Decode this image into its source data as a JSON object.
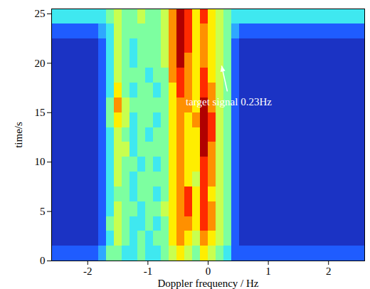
{
  "chart_data": {
    "type": "heatmap",
    "xlabel": "Doppler frequency / Hz",
    "ylabel": "time/s",
    "xlim": [
      -2.6,
      2.6
    ],
    "ylim": [
      0,
      25.5
    ],
    "xticks": [
      -2,
      -1,
      0,
      1,
      2
    ],
    "yticks": [
      0,
      5,
      10,
      15,
      20,
      25
    ],
    "xbins": [
      -2.6,
      -2.47,
      -2.34,
      -2.21,
      -2.08,
      -1.95,
      -1.82,
      -1.69,
      -1.56,
      -1.43,
      -1.3,
      -1.17,
      -1.04,
      -0.91,
      -0.78,
      -0.65,
      -0.52,
      -0.39,
      -0.26,
      -0.13,
      0,
      0.13,
      0.26,
      0.39,
      0.52,
      0.65,
      0.78,
      0.91,
      1.04,
      1.17,
      1.3,
      1.43,
      1.56,
      1.69,
      1.82,
      1.95,
      2.08,
      2.21,
      2.34,
      2.47,
      2.6
    ],
    "ybins": [
      0,
      1.5,
      3,
      4.5,
      6,
      7.5,
      9,
      10.5,
      12,
      13.5,
      15,
      16.5,
      18,
      19.5,
      21,
      22.5,
      24,
      25.5
    ],
    "values": [
      [
        1,
        1,
        1,
        1,
        1,
        1,
        2,
        4,
        4,
        3,
        3,
        4,
        3,
        3,
        4,
        5,
        6,
        5,
        4,
        6,
        5,
        4,
        3,
        1,
        1,
        1,
        1,
        1,
        1,
        1,
        1,
        1,
        1,
        1,
        1,
        1,
        1,
        1,
        1,
        1
      ],
      [
        0,
        0,
        0,
        0,
        0,
        0,
        1,
        3,
        5,
        4,
        3,
        4,
        3,
        4,
        4,
        6,
        7,
        6,
        5,
        7,
        6,
        5,
        4,
        1,
        0,
        0,
        0,
        0,
        0,
        0,
        0,
        0,
        0,
        0,
        0,
        0,
        0,
        0,
        0,
        0
      ],
      [
        0,
        0,
        0,
        0,
        0,
        0,
        1,
        4,
        5,
        4,
        3,
        3,
        4,
        3,
        4,
        6,
        7,
        7,
        6,
        8,
        7,
        5,
        4,
        1,
        0,
        0,
        0,
        0,
        0,
        0,
        0,
        0,
        0,
        0,
        0,
        0,
        0,
        0,
        0,
        0
      ],
      [
        0,
        0,
        0,
        0,
        0,
        0,
        1,
        3,
        5,
        4,
        4,
        3,
        4,
        4,
        5,
        6,
        7,
        8,
        6,
        8,
        7,
        5,
        4,
        1,
        0,
        0,
        0,
        0,
        0,
        0,
        0,
        0,
        0,
        0,
        0,
        0,
        0,
        0,
        0,
        0
      ],
      [
        0,
        0,
        0,
        0,
        0,
        0,
        1,
        3,
        4,
        4,
        3,
        4,
        4,
        3,
        4,
        6,
        7,
        8,
        6,
        8,
        6,
        5,
        4,
        1,
        0,
        0,
        0,
        0,
        0,
        0,
        0,
        0,
        0,
        0,
        0,
        0,
        0,
        0,
        0,
        0
      ],
      [
        0,
        0,
        0,
        0,
        0,
        0,
        1,
        3,
        5,
        4,
        3,
        4,
        4,
        4,
        4,
        6,
        7,
        6,
        5,
        8,
        7,
        5,
        4,
        1,
        0,
        0,
        0,
        0,
        0,
        0,
        0,
        0,
        0,
        0,
        0,
        0,
        0,
        0,
        0,
        0
      ],
      [
        0,
        0,
        0,
        0,
        0,
        0,
        1,
        3,
        5,
        4,
        4,
        3,
        4,
        3,
        4,
        6,
        7,
        6,
        6,
        8,
        7,
        5,
        4,
        1,
        0,
        0,
        0,
        0,
        0,
        0,
        0,
        0,
        0,
        0,
        0,
        0,
        0,
        0,
        0,
        0
      ],
      [
        0,
        0,
        0,
        0,
        0,
        0,
        1,
        3,
        5,
        5,
        3,
        4,
        4,
        4,
        4,
        6,
        7,
        6,
        6,
        9,
        7,
        5,
        4,
        1,
        0,
        0,
        0,
        0,
        0,
        0,
        0,
        0,
        0,
        0,
        0,
        0,
        0,
        0,
        0,
        0
      ],
      [
        0,
        0,
        0,
        0,
        0,
        0,
        1,
        3,
        5,
        4,
        3,
        4,
        3,
        4,
        4,
        6,
        7,
        6,
        6,
        9,
        8,
        5,
        4,
        1,
        0,
        0,
        0,
        0,
        0,
        0,
        0,
        0,
        0,
        0,
        0,
        0,
        0,
        0,
        0,
        0
      ],
      [
        0,
        0,
        0,
        0,
        0,
        0,
        1,
        4,
        6,
        5,
        3,
        4,
        4,
        3,
        4,
        6,
        7,
        6,
        7,
        9,
        8,
        5,
        4,
        1,
        0,
        0,
        0,
        0,
        0,
        0,
        0,
        0,
        0,
        0,
        0,
        0,
        0,
        0,
        0,
        0
      ],
      [
        0,
        0,
        0,
        0,
        0,
        0,
        1,
        4,
        7,
        5,
        4,
        4,
        4,
        4,
        4,
        6,
        7,
        7,
        6,
        9,
        7,
        5,
        4,
        1,
        0,
        0,
        0,
        0,
        0,
        0,
        0,
        0,
        0,
        0,
        0,
        0,
        0,
        0,
        0,
        0
      ],
      [
        0,
        0,
        0,
        0,
        0,
        0,
        1,
        3,
        6,
        4,
        3,
        4,
        4,
        3,
        4,
        6,
        8,
        7,
        6,
        8,
        7,
        5,
        4,
        1,
        0,
        0,
        0,
        0,
        0,
        0,
        0,
        0,
        0,
        0,
        0,
        0,
        0,
        0,
        0,
        0
      ],
      [
        0,
        0,
        0,
        0,
        0,
        0,
        1,
        3,
        5,
        4,
        4,
        4,
        3,
        4,
        4,
        7,
        8,
        7,
        6,
        8,
        6,
        5,
        4,
        1,
        0,
        0,
        0,
        0,
        0,
        0,
        0,
        0,
        0,
        0,
        0,
        0,
        0,
        0,
        0,
        0
      ],
      [
        0,
        0,
        0,
        0,
        0,
        0,
        1,
        3,
        5,
        4,
        3,
        4,
        4,
        4,
        5,
        7,
        9,
        7,
        6,
        7,
        6,
        5,
        4,
        1,
        0,
        0,
        0,
        0,
        0,
        0,
        0,
        0,
        0,
        0,
        0,
        0,
        0,
        0,
        0,
        0
      ],
      [
        0,
        0,
        0,
        0,
        0,
        0,
        1,
        3,
        5,
        4,
        3,
        4,
        4,
        4,
        5,
        7,
        9,
        8,
        6,
        7,
        6,
        5,
        4,
        1,
        0,
        0,
        0,
        0,
        0,
        0,
        0,
        0,
        0,
        0,
        0,
        0,
        0,
        0,
        0,
        0
      ],
      [
        1,
        1,
        1,
        1,
        1,
        1,
        2,
        3,
        5,
        4,
        4,
        4,
        4,
        4,
        5,
        7,
        9,
        8,
        6,
        7,
        6,
        5,
        4,
        2,
        1,
        1,
        1,
        1,
        1,
        1,
        1,
        1,
        1,
        1,
        1,
        1,
        1,
        1,
        1,
        1
      ],
      [
        3,
        3,
        3,
        3,
        3,
        3,
        3,
        4,
        5,
        4,
        4,
        5,
        4,
        4,
        5,
        7,
        9,
        8,
        6,
        8,
        6,
        5,
        4,
        3,
        3,
        3,
        3,
        3,
        3,
        3,
        3,
        3,
        3,
        3,
        3,
        3,
        3,
        3,
        3,
        3
      ]
    ],
    "color_range": [
      0,
      9
    ],
    "annotations": [
      {
        "text": "target signal 0.23Hz",
        "x": 0.23,
        "y": 20
      }
    ]
  }
}
